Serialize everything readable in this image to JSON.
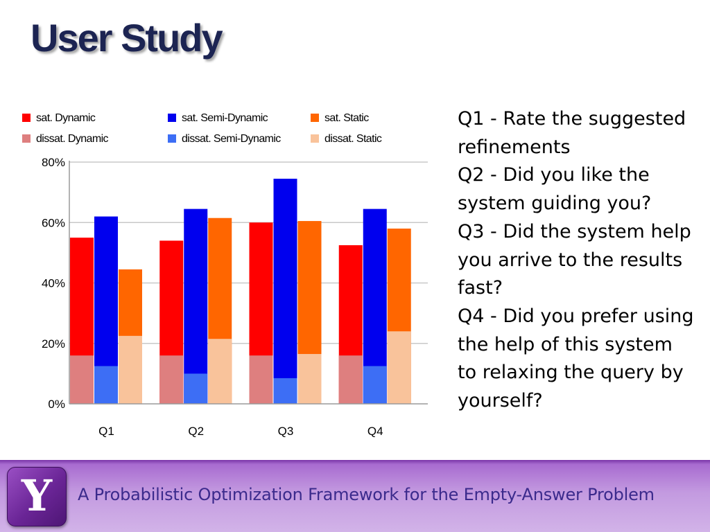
{
  "slide": {
    "title": "User Study",
    "questions": [
      "Q1 -  Rate the suggested refinements",
      "Q2  -  Did you like the system guiding you?",
      "Q3  - Did the system help you arrive to the results fast?",
      "Q4 -  Did you prefer using the help of this system to relaxing the query by yourself?"
    ],
    "footer_text": "A Probabilistic Optimization Framework for the Empty-Answer Problem",
    "logo_letter": "Y",
    "logo_icon": "yahoo-y-logo-icon"
  },
  "chart_data": {
    "type": "bar",
    "stacking": "overlapping (dissatisfied drawn in front of satisfied)",
    "categories": [
      "Q1",
      "Q2",
      "Q3",
      "Q4"
    ],
    "y_ticks": [
      "0%",
      "20%",
      "40%",
      "60%",
      "80%"
    ],
    "ylim": [
      0,
      80
    ],
    "grid": true,
    "legend_position": "top",
    "groups": [
      {
        "name": "Dynamic",
        "sat_label": "sat. Dynamic",
        "dissat_label": "dissat. Dynamic",
        "sat_color": "#ff0000",
        "dissat_color": "#de7f7f",
        "sat": [
          55,
          54,
          60,
          52.5
        ],
        "dissat": [
          16,
          16,
          16,
          16
        ]
      },
      {
        "name": "Semi-Dynamic",
        "sat_label": "sat. Semi-Dynamic",
        "dissat_label": "dissat. Semi-Dynamic",
        "sat_color": "#0000ee",
        "dissat_color": "#3d6ef5",
        "sat": [
          62,
          64.5,
          74.5,
          64.5
        ],
        "dissat": [
          12.5,
          10,
          8.5,
          12.5
        ]
      },
      {
        "name": "Static",
        "sat_label": "sat. Static",
        "dissat_label": "dissat. Static",
        "sat_color": "#ff6600",
        "dissat_color": "#f9c39b",
        "sat": [
          44.5,
          61.5,
          60.5,
          58
        ],
        "dissat": [
          22.5,
          21.5,
          16.5,
          24
        ]
      }
    ]
  }
}
